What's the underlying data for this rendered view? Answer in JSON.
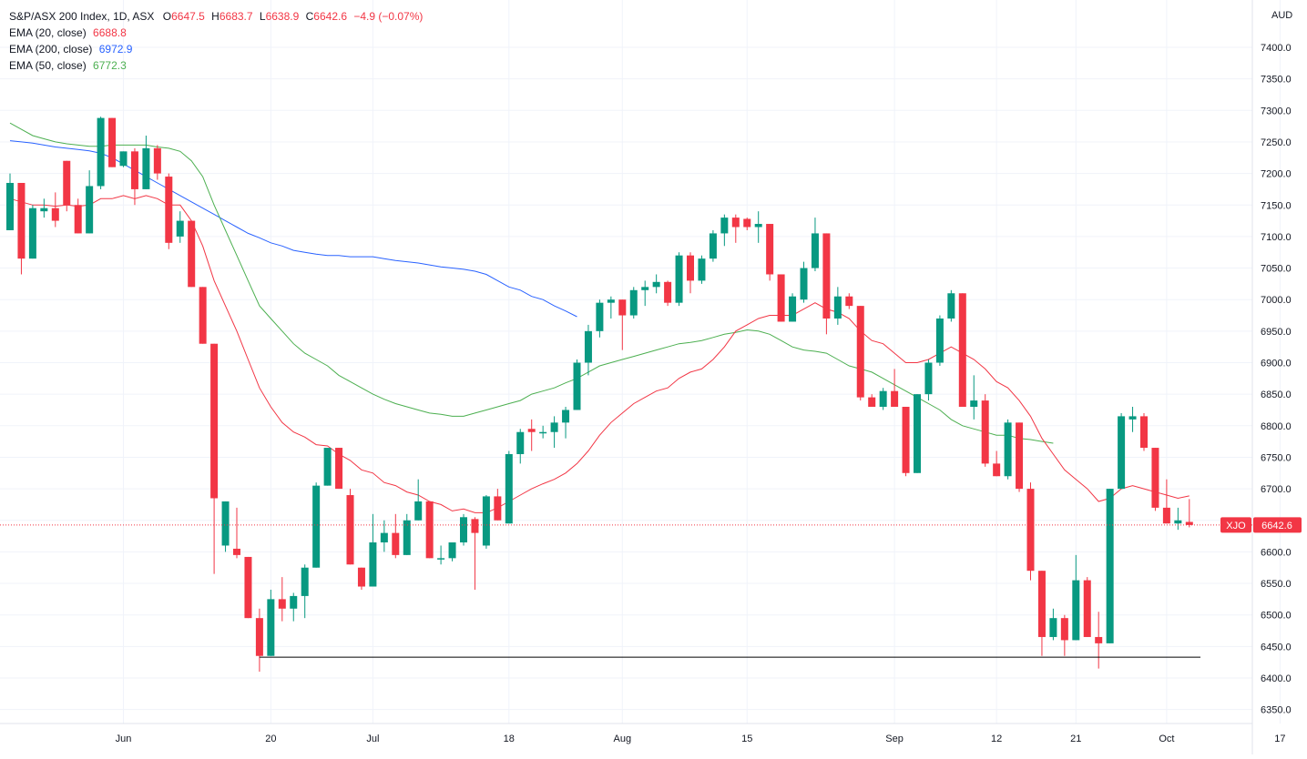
{
  "header": {
    "symbol": "S&P/ASX 200 Index, 1D, ASX",
    "open_label": "O",
    "open": "6647.5",
    "high_label": "H",
    "high": "6683.7",
    "low_label": "L",
    "low": "6638.9",
    "close_label": "C",
    "close": "6642.6",
    "change": "−4.9 (−0.07%)",
    "currency": "AUD"
  },
  "indicators": [
    {
      "label": "EMA (20, close)",
      "value": "6688.8",
      "color": "#f23645"
    },
    {
      "label": "EMA (200, close)",
      "value": "6972.9",
      "color": "#2962ff"
    },
    {
      "label": "EMA (50, close)",
      "value": "6772.3",
      "color": "#4caf50"
    }
  ],
  "price_tag": {
    "symbol": "XJO",
    "value": "6642.6"
  },
  "colors": {
    "up": "#089981",
    "down": "#f23645",
    "ema20": "#f23645",
    "ema50": "#4caf50",
    "ema200": "#2962ff",
    "grid": "#f0f3fa"
  },
  "chart_data": {
    "type": "candlestick",
    "y_ticks": [
      "6350.0",
      "6400.0",
      "6450.0",
      "6500.0",
      "6550.0",
      "6600.0",
      "6650.0",
      "6700.0",
      "6750.0",
      "6800.0",
      "6850.0",
      "6900.0",
      "6950.0",
      "7000.0",
      "7050.0",
      "7100.0",
      "7150.0",
      "7200.0",
      "7250.0",
      "7300.0",
      "7350.0",
      "7400.0"
    ],
    "ylim": [
      6320,
      7440
    ],
    "x_ticks": [
      {
        "label": "Jun",
        "index": 10
      },
      {
        "label": "20",
        "index": 23
      },
      {
        "label": "Jul",
        "index": 32
      },
      {
        "label": "18",
        "index": 44
      },
      {
        "label": "Aug",
        "index": 54
      },
      {
        "label": "15",
        "index": 65
      },
      {
        "label": "Sep",
        "index": 78
      },
      {
        "label": "12",
        "index": 87
      },
      {
        "label": "21",
        "index": 94
      },
      {
        "label": "Oct",
        "index": 102
      },
      {
        "label": "17",
        "index": 112
      }
    ],
    "support_level": 6433,
    "candles": [
      {
        "o": 7110,
        "h": 7200,
        "l": 7110,
        "c": 7185
      },
      {
        "o": 7185,
        "h": 7185,
        "l": 7040,
        "c": 7065
      },
      {
        "o": 7065,
        "h": 7150,
        "l": 7065,
        "c": 7145
      },
      {
        "o": 7140,
        "h": 7160,
        "l": 7130,
        "c": 7145
      },
      {
        "o": 7145,
        "h": 7170,
        "l": 7115,
        "c": 7125
      },
      {
        "o": 7220,
        "h": 7220,
        "l": 7140,
        "c": 7150
      },
      {
        "o": 7150,
        "h": 7160,
        "l": 7105,
        "c": 7105
      },
      {
        "o": 7105,
        "h": 7205,
        "l": 7105,
        "c": 7180
      },
      {
        "o": 7180,
        "h": 7290,
        "l": 7175,
        "c": 7288
      },
      {
        "o": 7288,
        "h": 7288,
        "l": 7210,
        "c": 7210
      },
      {
        "o": 7212,
        "h": 7235,
        "l": 7210,
        "c": 7235
      },
      {
        "o": 7235,
        "h": 7240,
        "l": 7150,
        "c": 7175
      },
      {
        "o": 7175,
        "h": 7260,
        "l": 7175,
        "c": 7240
      },
      {
        "o": 7240,
        "h": 7245,
        "l": 7190,
        "c": 7200
      },
      {
        "o": 7195,
        "h": 7200,
        "l": 7080,
        "c": 7090
      },
      {
        "o": 7100,
        "h": 7140,
        "l": 7090,
        "c": 7125
      },
      {
        "o": 7125,
        "h": 7125,
        "l": 7020,
        "c": 7020
      },
      {
        "o": 7020,
        "h": 7020,
        "l": 6930,
        "c": 6930
      },
      {
        "o": 6930,
        "h": 6930,
        "l": 6565,
        "c": 6685
      },
      {
        "o": 6610,
        "h": 6680,
        "l": 6600,
        "c": 6680
      },
      {
        "o": 6605,
        "h": 6670,
        "l": 6590,
        "c": 6595
      },
      {
        "o": 6592,
        "h": 6592,
        "l": 6495,
        "c": 6495
      },
      {
        "o": 6495,
        "h": 6510,
        "l": 6410,
        "c": 6435
      },
      {
        "o": 6435,
        "h": 6540,
        "l": 6435,
        "c": 6525
      },
      {
        "o": 6525,
        "h": 6560,
        "l": 6490,
        "c": 6510
      },
      {
        "o": 6510,
        "h": 6535,
        "l": 6490,
        "c": 6530
      },
      {
        "o": 6530,
        "h": 6580,
        "l": 6495,
        "c": 6575
      },
      {
        "o": 6575,
        "h": 6710,
        "l": 6575,
        "c": 6705
      },
      {
        "o": 6705,
        "h": 6765,
        "l": 6705,
        "c": 6765
      },
      {
        "o": 6765,
        "h": 6765,
        "l": 6700,
        "c": 6700
      },
      {
        "o": 6690,
        "h": 6700,
        "l": 6580,
        "c": 6580
      },
      {
        "o": 6575,
        "h": 6575,
        "l": 6540,
        "c": 6545
      },
      {
        "o": 6545,
        "h": 6660,
        "l": 6545,
        "c": 6615
      },
      {
        "o": 6615,
        "h": 6650,
        "l": 6600,
        "c": 6630
      },
      {
        "o": 6630,
        "h": 6660,
        "l": 6590,
        "c": 6595
      },
      {
        "o": 6595,
        "h": 6660,
        "l": 6595,
        "c": 6650
      },
      {
        "o": 6650,
        "h": 6715,
        "l": 6650,
        "c": 6680
      },
      {
        "o": 6680,
        "h": 6680,
        "l": 6590,
        "c": 6590
      },
      {
        "o": 6588,
        "h": 6610,
        "l": 6580,
        "c": 6590
      },
      {
        "o": 6590,
        "h": 6615,
        "l": 6585,
        "c": 6615
      },
      {
        "o": 6615,
        "h": 6660,
        "l": 6610,
        "c": 6655
      },
      {
        "o": 6652,
        "h": 6655,
        "l": 6540,
        "c": 6630
      },
      {
        "o": 6610,
        "h": 6690,
        "l": 6605,
        "c": 6688
      },
      {
        "o": 6688,
        "h": 6700,
        "l": 6650,
        "c": 6650
      },
      {
        "o": 6645,
        "h": 6760,
        "l": 6645,
        "c": 6755
      },
      {
        "o": 6755,
        "h": 6795,
        "l": 6740,
        "c": 6790
      },
      {
        "o": 6795,
        "h": 6810,
        "l": 6760,
        "c": 6790
      },
      {
        "o": 6790,
        "h": 6800,
        "l": 6780,
        "c": 6790
      },
      {
        "o": 6790,
        "h": 6815,
        "l": 6765,
        "c": 6805
      },
      {
        "o": 6805,
        "h": 6830,
        "l": 6780,
        "c": 6825
      },
      {
        "o": 6825,
        "h": 6905,
        "l": 6825,
        "c": 6900
      },
      {
        "o": 6900,
        "h": 6960,
        "l": 6880,
        "c": 6950
      },
      {
        "o": 6950,
        "h": 7000,
        "l": 6940,
        "c": 6995
      },
      {
        "o": 6995,
        "h": 7005,
        "l": 6970,
        "c": 7000
      },
      {
        "o": 7000,
        "h": 7000,
        "l": 6920,
        "c": 6975
      },
      {
        "o": 6975,
        "h": 7020,
        "l": 6970,
        "c": 7015
      },
      {
        "o": 7015,
        "h": 7030,
        "l": 6990,
        "c": 7020
      },
      {
        "o": 7020,
        "h": 7040,
        "l": 7010,
        "c": 7028
      },
      {
        "o": 7028,
        "h": 7030,
        "l": 6990,
        "c": 6995
      },
      {
        "o": 6995,
        "h": 7075,
        "l": 6990,
        "c": 7070
      },
      {
        "o": 7070,
        "h": 7075,
        "l": 7010,
        "c": 7030
      },
      {
        "o": 7030,
        "h": 7070,
        "l": 7025,
        "c": 7065
      },
      {
        "o": 7065,
        "h": 7110,
        "l": 7060,
        "c": 7105
      },
      {
        "o": 7105,
        "h": 7135,
        "l": 7085,
        "c": 7130
      },
      {
        "o": 7130,
        "h": 7135,
        "l": 7090,
        "c": 7115
      },
      {
        "o": 7128,
        "h": 7130,
        "l": 7110,
        "c": 7115
      },
      {
        "o": 7115,
        "h": 7140,
        "l": 7090,
        "c": 7120
      },
      {
        "o": 7120,
        "h": 7120,
        "l": 7030,
        "c": 7040
      },
      {
        "o": 7040,
        "h": 7040,
        "l": 6965,
        "c": 6965
      },
      {
        "o": 6965,
        "h": 7010,
        "l": 6965,
        "c": 7005
      },
      {
        "o": 7000,
        "h": 7060,
        "l": 6995,
        "c": 7050
      },
      {
        "o": 7050,
        "h": 7130,
        "l": 7045,
        "c": 7105
      },
      {
        "o": 7105,
        "h": 7105,
        "l": 6945,
        "c": 6970
      },
      {
        "o": 6970,
        "h": 7020,
        "l": 6960,
        "c": 7005
      },
      {
        "o": 7005,
        "h": 7010,
        "l": 6985,
        "c": 6990
      },
      {
        "o": 6990,
        "h": 6990,
        "l": 6840,
        "c": 6845
      },
      {
        "o": 6845,
        "h": 6850,
        "l": 6830,
        "c": 6830
      },
      {
        "o": 6830,
        "h": 6860,
        "l": 6825,
        "c": 6855
      },
      {
        "o": 6855,
        "h": 6890,
        "l": 6830,
        "c": 6830
      },
      {
        "o": 6830,
        "h": 6830,
        "l": 6720,
        "c": 6725
      },
      {
        "o": 6725,
        "h": 6850,
        "l": 6725,
        "c": 6850
      },
      {
        "o": 6850,
        "h": 6905,
        "l": 6840,
        "c": 6900
      },
      {
        "o": 6900,
        "h": 6975,
        "l": 6895,
        "c": 6970
      },
      {
        "o": 6970,
        "h": 7015,
        "l": 6965,
        "c": 7010
      },
      {
        "o": 7010,
        "h": 7010,
        "l": 6830,
        "c": 6830
      },
      {
        "o": 6830,
        "h": 6880,
        "l": 6810,
        "c": 6840
      },
      {
        "o": 6840,
        "h": 6850,
        "l": 6735,
        "c": 6740
      },
      {
        "o": 6740,
        "h": 6760,
        "l": 6720,
        "c": 6720
      },
      {
        "o": 6720,
        "h": 6810,
        "l": 6715,
        "c": 6805
      },
      {
        "o": 6805,
        "h": 6805,
        "l": 6695,
        "c": 6700
      },
      {
        "o": 6700,
        "h": 6710,
        "l": 6555,
        "c": 6570
      },
      {
        "o": 6570,
        "h": 6570,
        "l": 6435,
        "c": 6465
      },
      {
        "o": 6465,
        "h": 6510,
        "l": 6460,
        "c": 6495
      },
      {
        "o": 6495,
        "h": 6500,
        "l": 6435,
        "c": 6460
      },
      {
        "o": 6460,
        "h": 6595,
        "l": 6460,
        "c": 6555
      },
      {
        "o": 6555,
        "h": 6560,
        "l": 6465,
        "c": 6465
      },
      {
        "o": 6465,
        "h": 6505,
        "l": 6415,
        "c": 6455
      },
      {
        "o": 6455,
        "h": 6700,
        "l": 6455,
        "c": 6700
      },
      {
        "o": 6700,
        "h": 6820,
        "l": 6700,
        "c": 6815
      },
      {
        "o": 6810,
        "h": 6830,
        "l": 6790,
        "c": 6815
      },
      {
        "o": 6815,
        "h": 6820,
        "l": 6760,
        "c": 6765
      },
      {
        "o": 6765,
        "h": 6765,
        "l": 6665,
        "c": 6670
      },
      {
        "o": 6670,
        "h": 6715,
        "l": 6645,
        "c": 6645
      },
      {
        "o": 6645,
        "h": 6670,
        "l": 6635,
        "c": 6650
      },
      {
        "o": 6647.5,
        "h": 6683.7,
        "l": 6638.9,
        "c": 6642.6
      }
    ],
    "ema20": [
      7160,
      7155,
      7150,
      7150,
      7148,
      7150,
      7148,
      7150,
      7160,
      7160,
      7165,
      7160,
      7165,
      7160,
      7150,
      7150,
      7125,
      7085,
      7030,
      6990,
      6950,
      6905,
      6860,
      6830,
      6805,
      6790,
      6782,
      6770,
      6768,
      6755,
      6745,
      6730,
      6725,
      6710,
      6705,
      6695,
      6690,
      6680,
      6675,
      6665,
      6668,
      6662,
      6662,
      6670,
      6680,
      6690,
      6700,
      6708,
      6715,
      6725,
      6740,
      6760,
      6785,
      6805,
      6820,
      6835,
      6845,
      6855,
      6860,
      6875,
      6885,
      6890,
      6905,
      6925,
      6950,
      6960,
      6970,
      6975,
      6975,
      6975,
      6985,
      6995,
      6985,
      6980,
      6970,
      6950,
      6935,
      6930,
      6915,
      6900,
      6900,
      6905,
      6915,
      6925,
      6915,
      6905,
      6890,
      6870,
      6860,
      6840,
      6815,
      6780,
      6755,
      6730,
      6715,
      6700,
      6680,
      6685,
      6700,
      6705,
      6700,
      6695,
      6690,
      6685,
      6688.8
    ],
    "ema50": [
      7280,
      7270,
      7260,
      7255,
      7250,
      7247,
      7245,
      7243,
      7243,
      7245,
      7245,
      7245,
      7245,
      7242,
      7240,
      7235,
      7220,
      7195,
      7150,
      7110,
      7070,
      7030,
      6990,
      6970,
      6950,
      6930,
      6915,
      6905,
      6895,
      6880,
      6870,
      6860,
      6850,
      6842,
      6835,
      6830,
      6825,
      6820,
      6818,
      6815,
      6815,
      6820,
      6825,
      6830,
      6835,
      6840,
      6850,
      6855,
      6860,
      6868,
      6875,
      6885,
      6895,
      6900,
      6905,
      6910,
      6915,
      6920,
      6925,
      6930,
      6932,
      6935,
      6940,
      6945,
      6948,
      6952,
      6950,
      6945,
      6935,
      6925,
      6920,
      6918,
      6915,
      6905,
      6895,
      6890,
      6885,
      6875,
      6865,
      6855,
      6845,
      6835,
      6825,
      6810,
      6800,
      6795,
      6790,
      6785,
      6785,
      6780,
      6778,
      6775,
      6772.3
    ],
    "ema200": [
      7252,
      7250,
      7248,
      7245,
      7242,
      7240,
      7238,
      7236,
      7232,
      7225,
      7215,
      7205,
      7195,
      7185,
      7175,
      7165,
      7155,
      7145,
      7135,
      7125,
      7115,
      7105,
      7098,
      7090,
      7085,
      7078,
      7075,
      7072,
      7070,
      7070,
      7068,
      7068,
      7068,
      7065,
      7062,
      7060,
      7058,
      7055,
      7052,
      7050,
      7048,
      7045,
      7040,
      7030,
      7020,
      7015,
      7005,
      7000,
      6990,
      6982,
      6972.9
    ],
    "ema50_start": 12,
    "ema200_start": 54
  }
}
